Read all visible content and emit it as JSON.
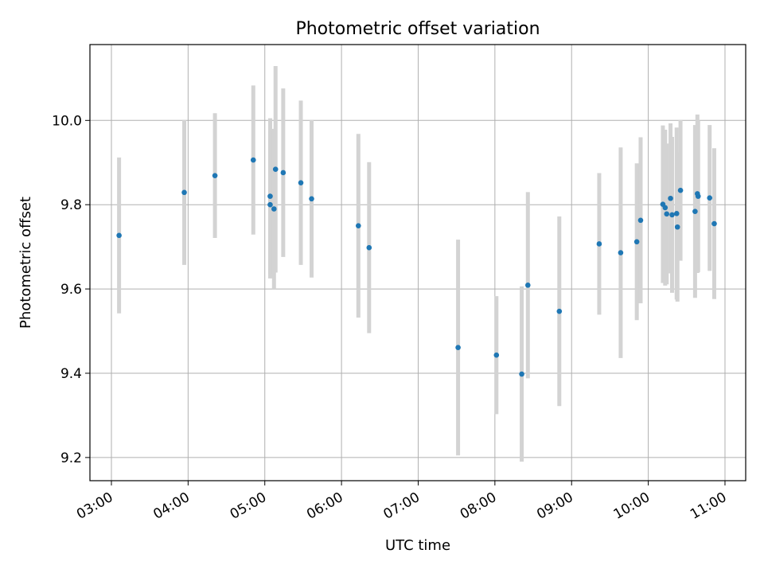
{
  "chart_data": {
    "type": "scatter",
    "title": "Photometric offset variation",
    "xlabel": "UTC time",
    "ylabel": "Photometric offset",
    "x_unit": "UTC hour",
    "xlim": [
      2.72,
      11.27
    ],
    "ylim": [
      9.145,
      10.18
    ],
    "x_ticks": [
      3,
      4,
      5,
      6,
      7,
      8,
      9,
      10,
      11
    ],
    "x_tick_labels": [
      "03:00",
      "04:00",
      "05:00",
      "06:00",
      "07:00",
      "08:00",
      "09:00",
      "10:00",
      "11:00"
    ],
    "y_ticks": [
      9.2,
      9.4,
      9.6,
      9.8,
      10.0
    ],
    "y_tick_labels": [
      "9.2",
      "9.4",
      "9.6",
      "9.8",
      "10.0"
    ],
    "grid": true,
    "colors": {
      "points": "#1f77b4",
      "errorbars": "#d3d3d3",
      "grid": "#b0b0b0"
    },
    "points": [
      {
        "x": 3.1,
        "y": 9.727,
        "err": 0.185
      },
      {
        "x": 3.95,
        "y": 9.829,
        "err": 0.172
      },
      {
        "x": 4.35,
        "y": 9.869,
        "err": 0.148
      },
      {
        "x": 4.85,
        "y": 9.906,
        "err": 0.177
      },
      {
        "x": 5.07,
        "y": 9.82,
        "err": 0.185
      },
      {
        "x": 5.07,
        "y": 9.8,
        "err": 0.175
      },
      {
        "x": 5.12,
        "y": 9.79,
        "err": 0.19
      },
      {
        "x": 5.14,
        "y": 9.884,
        "err": 0.245
      },
      {
        "x": 5.24,
        "y": 9.876,
        "err": 0.2
      },
      {
        "x": 5.47,
        "y": 9.852,
        "err": 0.195
      },
      {
        "x": 5.61,
        "y": 9.814,
        "err": 0.187
      },
      {
        "x": 6.22,
        "y": 9.75,
        "err": 0.218
      },
      {
        "x": 6.36,
        "y": 9.698,
        "err": 0.203
      },
      {
        "x": 7.52,
        "y": 9.461,
        "err": 0.256
      },
      {
        "x": 8.02,
        "y": 9.443,
        "err": 0.14
      },
      {
        "x": 8.35,
        "y": 9.398,
        "err": 0.208
      },
      {
        "x": 8.43,
        "y": 9.609,
        "err": 0.221
      },
      {
        "x": 8.84,
        "y": 9.547,
        "err": 0.225
      },
      {
        "x": 9.36,
        "y": 9.707,
        "err": 0.168
      },
      {
        "x": 9.64,
        "y": 9.686,
        "err": 0.25
      },
      {
        "x": 9.85,
        "y": 9.712,
        "err": 0.186
      },
      {
        "x": 9.9,
        "y": 9.763,
        "err": 0.197
      },
      {
        "x": 10.19,
        "y": 9.801,
        "err": 0.187
      },
      {
        "x": 10.22,
        "y": 9.793,
        "err": 0.185
      },
      {
        "x": 10.24,
        "y": 9.778,
        "err": 0.167
      },
      {
        "x": 10.29,
        "y": 9.815,
        "err": 0.178
      },
      {
        "x": 10.31,
        "y": 9.776,
        "err": 0.185
      },
      {
        "x": 10.37,
        "y": 9.779,
        "err": 0.204
      },
      {
        "x": 10.38,
        "y": 9.747,
        "err": 0.177
      },
      {
        "x": 10.42,
        "y": 9.834,
        "err": 0.167
      },
      {
        "x": 10.61,
        "y": 9.784,
        "err": 0.205
      },
      {
        "x": 10.64,
        "y": 9.826,
        "err": 0.188
      },
      {
        "x": 10.65,
        "y": 9.82,
        "err": 0.18
      },
      {
        "x": 10.8,
        "y": 9.816,
        "err": 0.173
      },
      {
        "x": 10.86,
        "y": 9.755,
        "err": 0.179
      }
    ]
  }
}
